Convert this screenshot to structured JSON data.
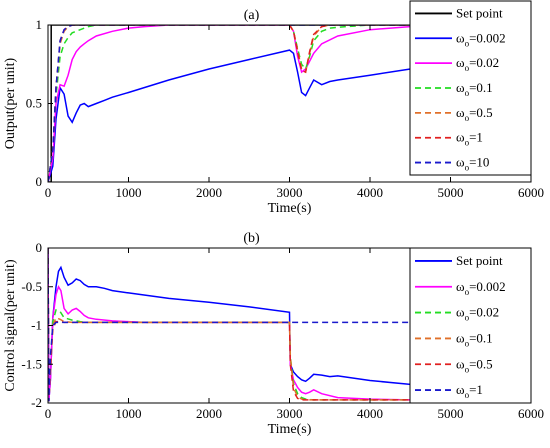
{
  "chart_data": [
    {
      "type": "line",
      "title": "(a)",
      "xlabel": "Time(s)",
      "ylabel": "Output(per unit)",
      "xlim": [
        0,
        6000
      ],
      "ylim": [
        0,
        1
      ],
      "xticks": [
        "0",
        "1000",
        "2000",
        "3000",
        "4000",
        "5000",
        "6000"
      ],
      "yticks": [
        "0",
        "0.5",
        "1"
      ],
      "legend_position": "top-right",
      "series": [
        {
          "name": "Set point",
          "color": "#000000",
          "dash": "solid",
          "x": [
            0,
            40,
            40,
            6000
          ],
          "y": [
            0,
            0,
            1,
            1
          ]
        },
        {
          "name": "ω_o=0.002",
          "color": "#0000ff",
          "dash": "solid",
          "x": [
            0,
            60,
            100,
            150,
            200,
            250,
            300,
            350,
            400,
            450,
            500,
            600,
            700,
            800,
            1000,
            1500,
            2000,
            2500,
            3000,
            3050,
            3100,
            3150,
            3200,
            3250,
            3300,
            3400,
            3500,
            3600,
            4000,
            4500,
            5000,
            5500,
            6000
          ],
          "y": [
            0,
            0.1,
            0.4,
            0.6,
            0.56,
            0.42,
            0.38,
            0.44,
            0.49,
            0.5,
            0.48,
            0.5,
            0.52,
            0.54,
            0.57,
            0.65,
            0.72,
            0.78,
            0.84,
            0.82,
            0.7,
            0.57,
            0.55,
            0.6,
            0.65,
            0.62,
            0.64,
            0.65,
            0.68,
            0.72,
            0.75,
            0.78,
            0.8
          ]
        },
        {
          "name": "ω_o=0.02",
          "color": "#ff00ff",
          "dash": "solid",
          "x": [
            0,
            60,
            100,
            150,
            200,
            250,
            300,
            350,
            400,
            450,
            500,
            600,
            800,
            1000,
            1200,
            1500,
            2000,
            3000,
            3050,
            3100,
            3150,
            3200,
            3300,
            3400,
            3600,
            4000,
            4500,
            5000,
            6000
          ],
          "y": [
            0,
            0.15,
            0.5,
            0.62,
            0.61,
            0.68,
            0.78,
            0.83,
            0.86,
            0.88,
            0.9,
            0.93,
            0.96,
            0.98,
            0.99,
            1,
            1,
            1,
            0.96,
            0.8,
            0.7,
            0.72,
            0.82,
            0.88,
            0.93,
            0.97,
            0.99,
            1,
            1
          ]
        },
        {
          "name": "ω_o=0.1",
          "color": "#22dd22",
          "dash": "dashed",
          "x": [
            0,
            60,
            100,
            150,
            200,
            250,
            300,
            400,
            500,
            600,
            800,
            3000,
            3050,
            3100,
            3150,
            3200,
            3250,
            3300,
            3400,
            3500,
            3700,
            4000,
            6000
          ],
          "y": [
            0,
            0.2,
            0.55,
            0.8,
            0.88,
            0.92,
            0.95,
            0.97,
            0.99,
            1,
            1,
            1,
            0.96,
            0.85,
            0.75,
            0.72,
            0.8,
            0.9,
            0.96,
            0.98,
            0.99,
            1,
            1
          ]
        },
        {
          "name": "ω_o=0.5",
          "color": "#e0702a",
          "dash": "dashed",
          "x": [
            0,
            60,
            100,
            150,
            200,
            250,
            300,
            400,
            3000,
            3050,
            3100,
            3150,
            3200,
            3250,
            3300,
            3400,
            3500,
            6000
          ],
          "y": [
            0,
            0.2,
            0.6,
            0.88,
            0.96,
            0.99,
            1,
            1,
            1,
            0.96,
            0.84,
            0.72,
            0.7,
            0.82,
            0.93,
            0.99,
            1,
            1
          ]
        },
        {
          "name": "ω_o=1",
          "color": "#e02020",
          "dash": "dashed",
          "x": [
            0,
            60,
            100,
            150,
            200,
            250,
            300,
            400,
            3000,
            3050,
            3100,
            3150,
            3200,
            3250,
            3300,
            3400,
            3500,
            6000
          ],
          "y": [
            0,
            0.2,
            0.6,
            0.9,
            0.97,
            0.99,
            1,
            1,
            1,
            0.96,
            0.83,
            0.71,
            0.7,
            0.83,
            0.94,
            0.99,
            1,
            1
          ]
        },
        {
          "name": "ω_o=10",
          "color": "#1a1acc",
          "dash": "dashed",
          "x": [
            0,
            60,
            100,
            150,
            200,
            250,
            300,
            6000
          ],
          "y": [
            0,
            0.2,
            0.6,
            0.9,
            0.97,
            0.99,
            1,
            1
          ]
        }
      ]
    },
    {
      "type": "line",
      "title": "(b)",
      "xlabel": "Time(s)",
      "ylabel": "Control signal(per unit)",
      "xlim": [
        0,
        6000
      ],
      "ylim": [
        -2,
        0
      ],
      "xticks": [
        "0",
        "1000",
        "2000",
        "3000",
        "4000",
        "5000",
        "6000"
      ],
      "yticks": [
        "-2",
        "-1.5",
        "-1",
        "-0.5",
        "0"
      ],
      "legend_position": "top-right",
      "series": [
        {
          "name": "Set point",
          "color": "#0000ff",
          "dash": "solid",
          "x": [
            0,
            10,
            30,
            60,
            100,
            130,
            160,
            200,
            250,
            300,
            350,
            400,
            450,
            500,
            600,
            700,
            800,
            1000,
            1500,
            2000,
            2500,
            3000,
            3010,
            3050,
            3100,
            3150,
            3200,
            3250,
            3300,
            3400,
            3500,
            3600,
            4000,
            4500,
            5000,
            5500,
            6000
          ],
          "y": [
            0,
            -1.98,
            -1.7,
            -0.9,
            -0.5,
            -0.3,
            -0.25,
            -0.38,
            -0.48,
            -0.45,
            -0.4,
            -0.42,
            -0.47,
            -0.5,
            -0.5,
            -0.52,
            -0.55,
            -0.58,
            -0.65,
            -0.7,
            -0.76,
            -0.83,
            -1.5,
            -1.6,
            -1.66,
            -1.7,
            -1.72,
            -1.68,
            -1.63,
            -1.64,
            -1.66,
            -1.65,
            -1.71,
            -1.76,
            -1.8,
            -1.83,
            -1.86
          ]
        },
        {
          "name": "ω_o=0.002",
          "color": "#ff00ff",
          "dash": "solid",
          "x": [
            0,
            10,
            30,
            60,
            100,
            130,
            160,
            200,
            250,
            300,
            350,
            400,
            450,
            500,
            600,
            800,
            1000,
            1200,
            2000,
            3000,
            3010,
            3050,
            3100,
            3150,
            3200,
            3250,
            3300,
            3400,
            3600,
            4000,
            4500,
            6000
          ],
          "y": [
            0,
            -1.98,
            -1.7,
            -0.9,
            -0.6,
            -0.5,
            -0.55,
            -0.78,
            -0.85,
            -0.8,
            -0.78,
            -0.82,
            -0.87,
            -0.9,
            -0.92,
            -0.94,
            -0.95,
            -0.96,
            -0.96,
            -0.96,
            -1.5,
            -1.7,
            -1.8,
            -1.86,
            -1.88,
            -1.86,
            -1.83,
            -1.88,
            -1.93,
            -1.95,
            -1.96,
            -1.96
          ]
        },
        {
          "name": "ω_o=0.02",
          "color": "#22dd22",
          "dash": "dashed",
          "x": [
            0,
            10,
            30,
            60,
            100,
            150,
            200,
            300,
            400,
            500,
            700,
            1000,
            3000,
            3010,
            3050,
            3100,
            3150,
            3200,
            3300,
            3500,
            4000,
            6000
          ],
          "y": [
            0,
            -1.98,
            -1.6,
            -0.95,
            -0.8,
            -0.82,
            -0.9,
            -0.93,
            -0.95,
            -0.96,
            -0.96,
            -0.96,
            -0.96,
            -1.4,
            -1.75,
            -1.88,
            -1.93,
            -1.95,
            -1.96,
            -1.96,
            -1.96,
            -1.96
          ]
        },
        {
          "name": "ω_o=0.1",
          "color": "#e0702a",
          "dash": "dashed",
          "x": [
            0,
            10,
            30,
            60,
            100,
            150,
            200,
            300,
            400,
            3000,
            3010,
            3050,
            3100,
            3150,
            3200,
            3300,
            6000
          ],
          "y": [
            0,
            -1.98,
            -1.6,
            -1.0,
            -0.9,
            -0.92,
            -0.95,
            -0.96,
            -0.96,
            -0.96,
            -1.4,
            -1.8,
            -1.92,
            -1.95,
            -1.96,
            -1.96,
            -1.96
          ]
        },
        {
          "name": "ω_o=0.5",
          "color": "#e02020",
          "dash": "dashed",
          "x": [
            0,
            10,
            30,
            60,
            100,
            150,
            200,
            300,
            3000,
            3010,
            3050,
            3100,
            3150,
            3200,
            6000
          ],
          "y": [
            0,
            -1.98,
            -1.5,
            -1.05,
            -0.95,
            -0.95,
            -0.96,
            -0.96,
            -0.96,
            -1.5,
            -1.85,
            -1.94,
            -1.96,
            -1.96,
            -1.96
          ]
        },
        {
          "name": "ω_o=1",
          "color": "#1a1acc",
          "dash": "dashed",
          "x": [
            0,
            10,
            30,
            60,
            100,
            150,
            6000
          ],
          "y": [
            0,
            -1.98,
            -1.4,
            -1.0,
            -0.96,
            -0.96,
            -0.96
          ]
        }
      ]
    }
  ]
}
